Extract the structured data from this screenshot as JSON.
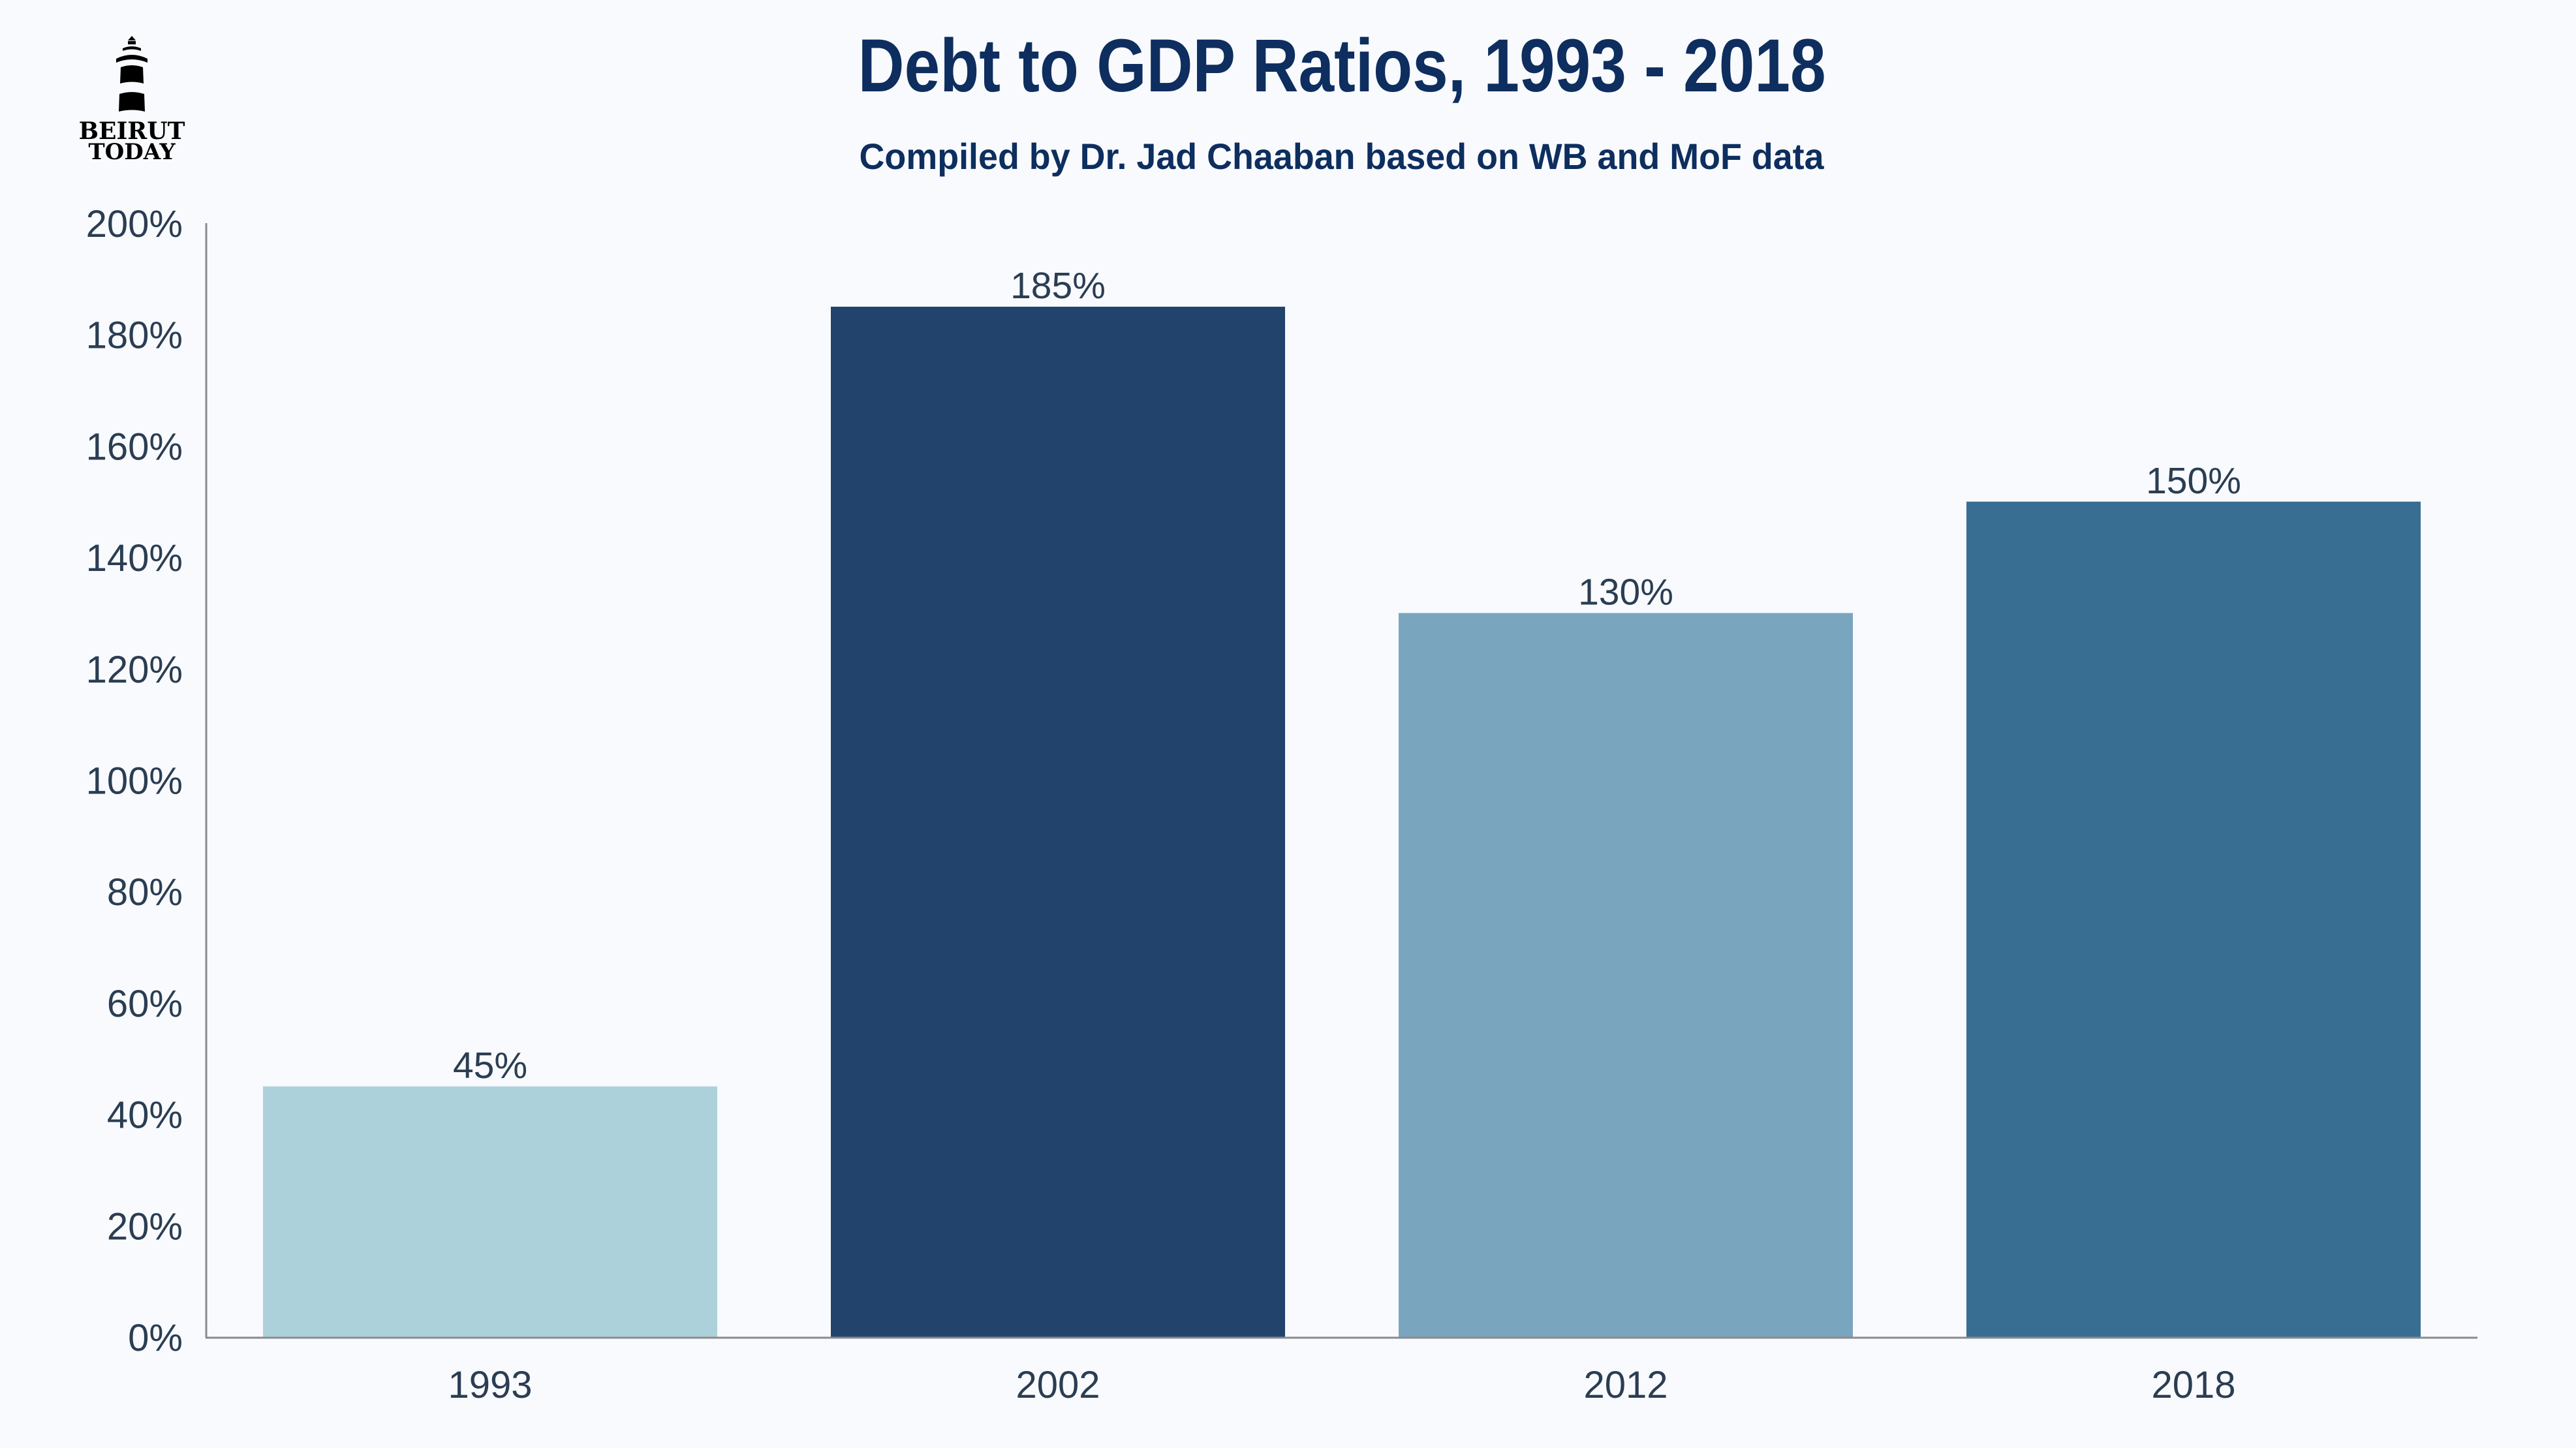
{
  "logo": {
    "line1": "BEIRUT",
    "line2": "TODAY",
    "icon": "lighthouse-icon"
  },
  "colors": {
    "background": "#F8FAFE",
    "title": "#0D2E5E",
    "text": "#2B3D52",
    "axis": "#8A8A8A"
  },
  "chart_data": {
    "type": "bar",
    "title": "Debt to GDP Ratios, 1993 - 2018",
    "subtitle": "Compiled by Dr. Jad Chaaban based on WB and MoF data",
    "xlabel": "",
    "ylabel": "",
    "categories": [
      "1993",
      "2002",
      "2012",
      "2018"
    ],
    "values": [
      45,
      185,
      130,
      150
    ],
    "data_labels": [
      "45%",
      "185%",
      "130%",
      "150%"
    ],
    "bar_colors": [
      "#ACD1DA",
      "#22446C",
      "#7AA5BF",
      "#376E92"
    ],
    "ylim": [
      0,
      200
    ],
    "y_ticks": [
      0,
      20,
      40,
      60,
      80,
      100,
      120,
      140,
      160,
      180,
      200
    ],
    "y_tick_labels": [
      "0%",
      "20%",
      "40%",
      "60%",
      "80%",
      "100%",
      "120%",
      "140%",
      "160%",
      "180%",
      "200%"
    ],
    "y_tick_format": "percent",
    "grid": false,
    "legend": "none"
  }
}
